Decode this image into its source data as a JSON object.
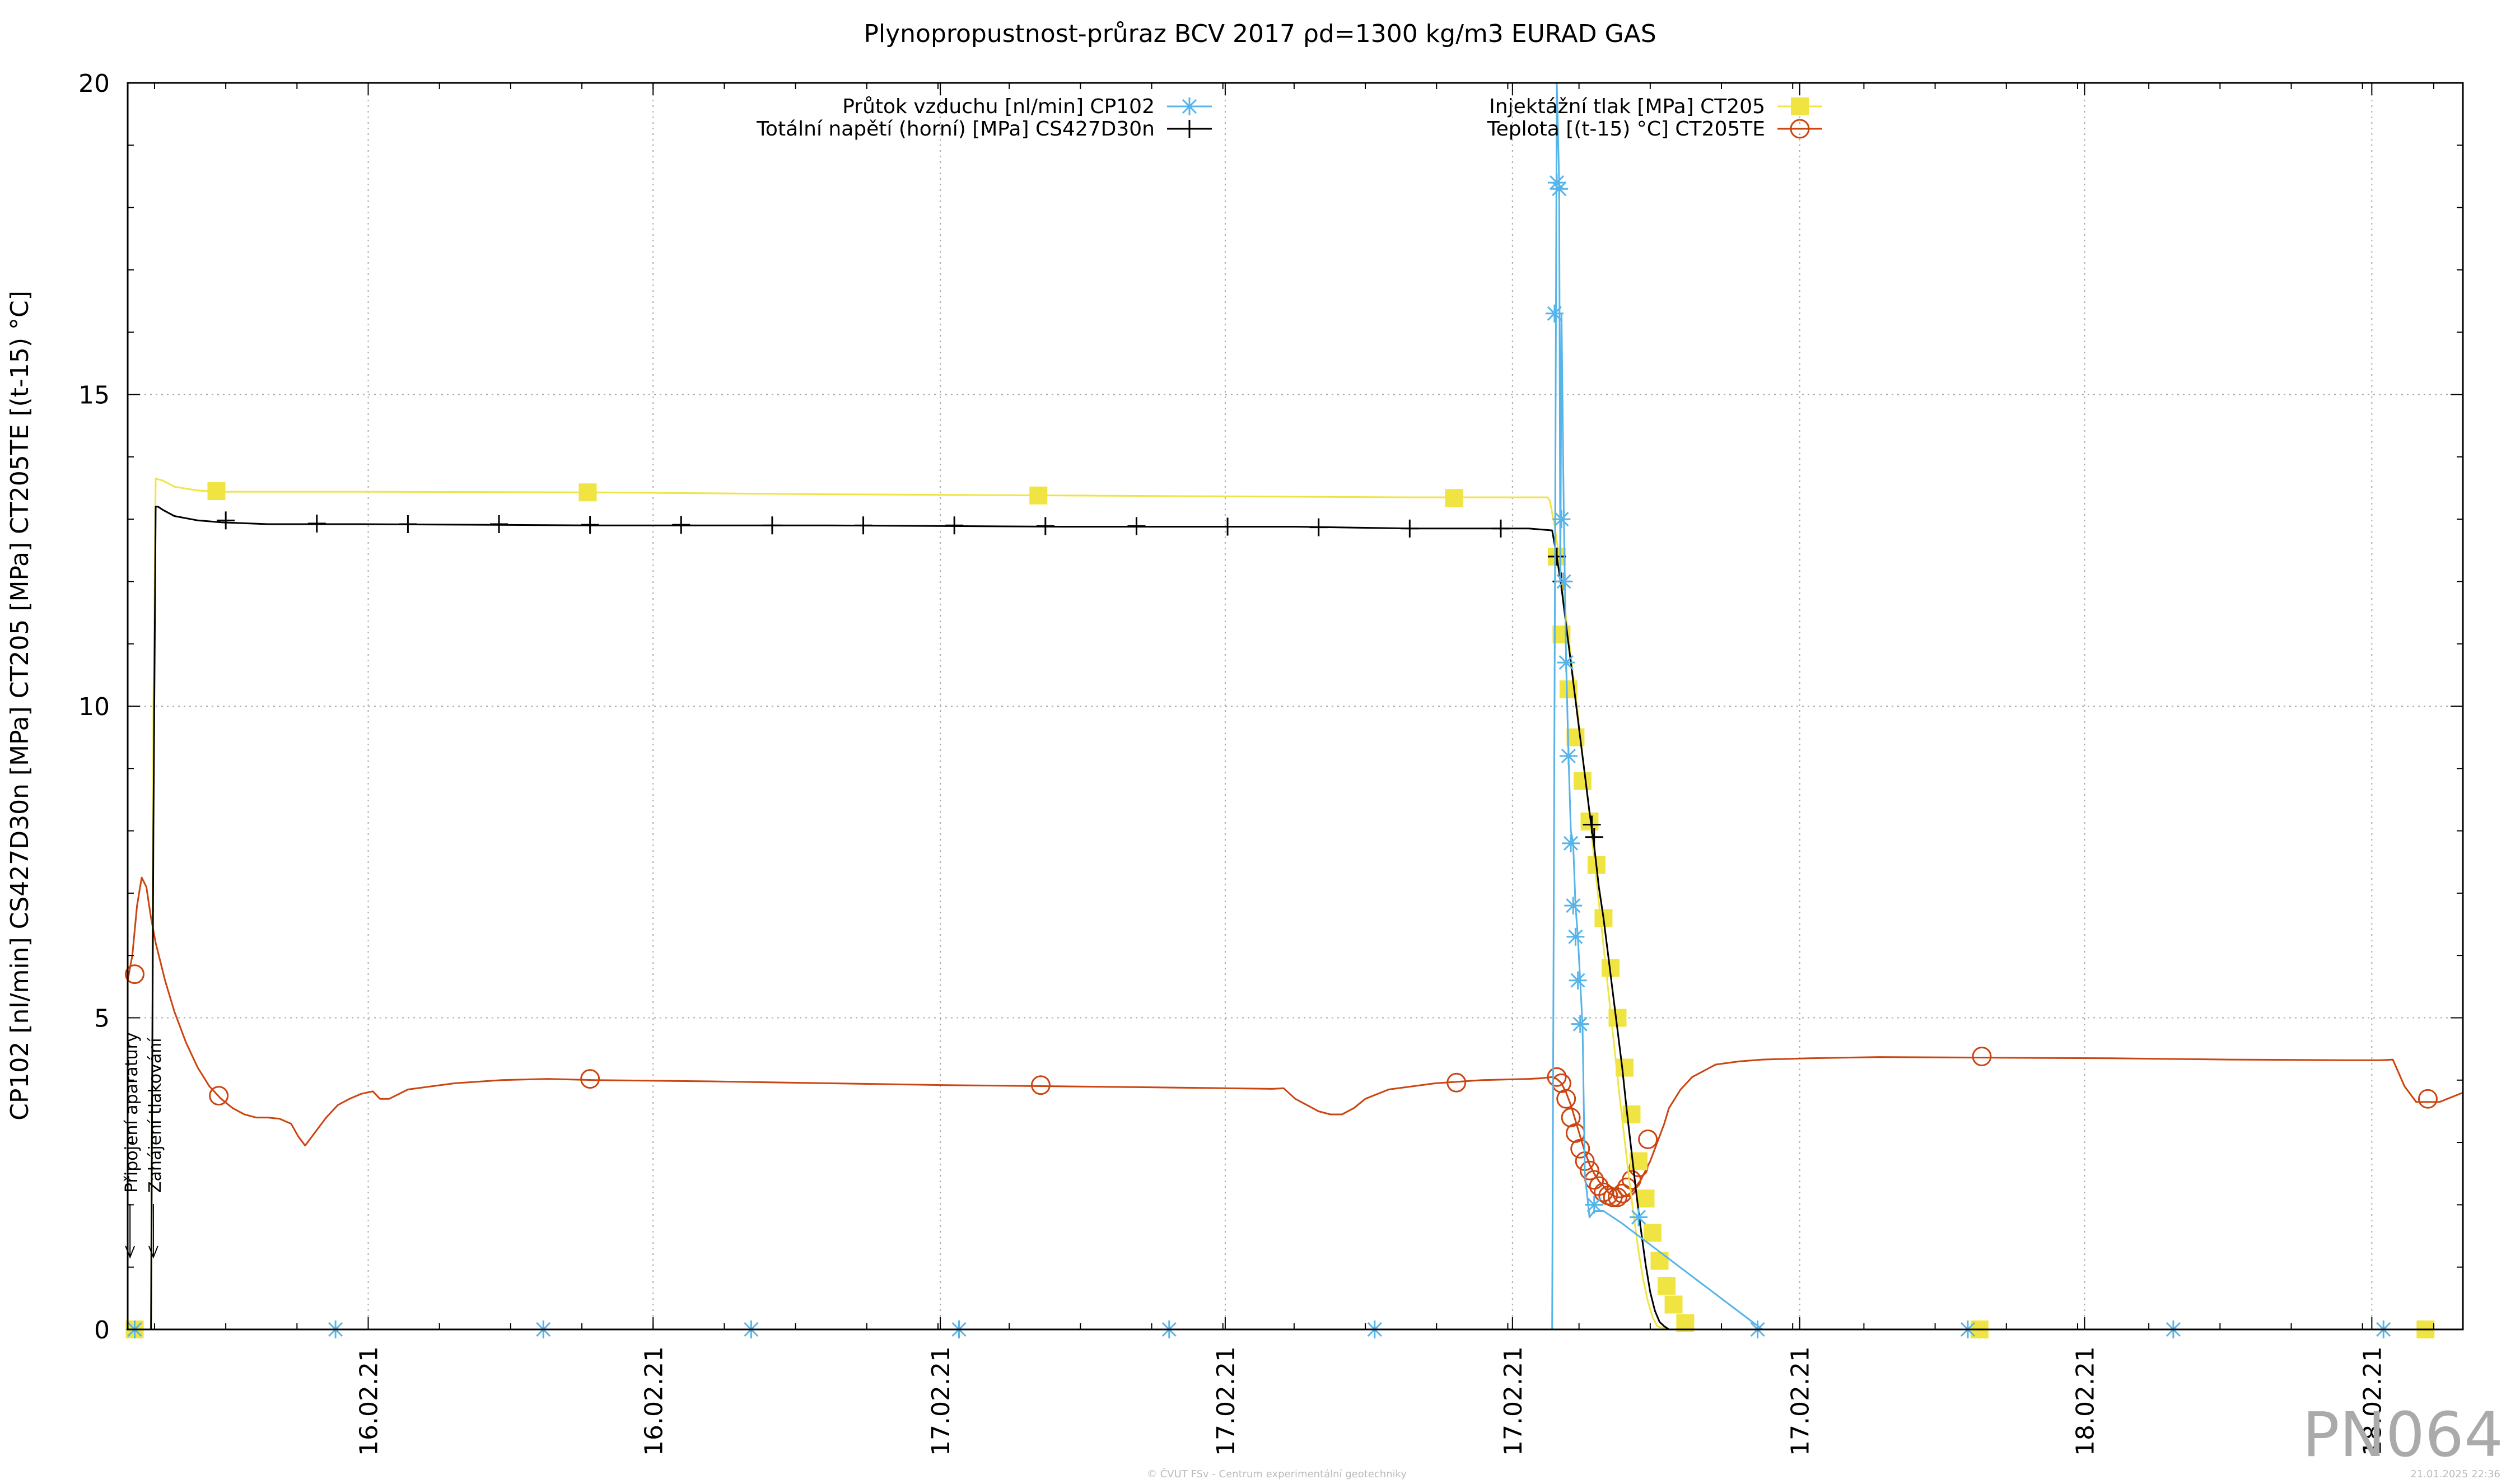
{
  "chart_data": {
    "type": "line",
    "title": "Plynopropustnost-průraz BCV 2017 ρd=1300 kg/m3 EURAD GAS",
    "ylabel": "CP102 [nl/min] CS427D30n [MPa] CT205 [MPa] CT205TE [(t-15) °C]",
    "xlabel": "",
    "ylim": [
      0,
      20
    ],
    "xlim": [
      0,
      1000
    ],
    "grid": true,
    "legend_position": "top",
    "y_ticks": [
      "0",
      "5",
      "10",
      "15",
      "20"
    ],
    "x_ticks": [
      {
        "x": 103,
        "label": "16.02.21"
      },
      {
        "x": 225,
        "label": "16.02.21"
      },
      {
        "x": 348,
        "label": "17.02.21"
      },
      {
        "x": 470,
        "label": "17.02.21"
      },
      {
        "x": 593,
        "label": "17.02.21"
      },
      {
        "x": 716,
        "label": "17.02.21"
      },
      {
        "x": 838,
        "label": "18.02.21"
      },
      {
        "x": 961,
        "label": "18.02.21"
      }
    ],
    "annotations": [
      {
        "text": "Připojení aparatury",
        "x": 1
      },
      {
        "text": "Zahájení tlakování",
        "x": 11
      }
    ],
    "series": [
      {
        "name": "Průtok vzduchu [nl/min] CP102",
        "color": "#56b4e9",
        "marker": "asterisk",
        "x": [
          0,
          610,
          611,
          612,
          613,
          613.5,
          614,
          615,
          616,
          617,
          618,
          619,
          620,
          621,
          622,
          623,
          624,
          626,
          628,
          632,
          640,
          700,
          800,
          1000
        ],
        "y": [
          0,
          0,
          10,
          20,
          18.4,
          12,
          16.3,
          13,
          10.7,
          9.2,
          8,
          7.8,
          6.8,
          6.3,
          5.6,
          4.9,
          2.5,
          1.8,
          1.9,
          1.9,
          1.7,
          0,
          0,
          0
        ],
        "marker_points": [
          [
            3,
            0
          ],
          [
            89,
            0
          ],
          [
            178,
            0
          ],
          [
            267,
            0
          ],
          [
            356,
            0
          ],
          [
            446,
            0
          ],
          [
            534,
            0
          ],
          [
            611,
            16.3
          ],
          [
            612,
            18.4
          ],
          [
            613,
            18.3
          ],
          [
            614,
            13
          ],
          [
            615,
            12
          ],
          [
            616,
            10.7
          ],
          [
            617,
            9.2
          ],
          [
            618,
            7.8
          ],
          [
            619,
            6.8
          ],
          [
            620,
            6.3
          ],
          [
            621,
            5.6
          ],
          [
            622,
            4.9
          ],
          [
            628,
            2
          ],
          [
            647,
            1.8
          ],
          [
            698,
            0
          ],
          [
            788,
            0
          ],
          [
            876,
            0
          ],
          [
            966,
            0
          ]
        ]
      },
      {
        "name": "Totální napětí (horní) [MPa] CS427D30n",
        "color": "#000000",
        "marker": "plus",
        "x": [
          0,
          10,
          11,
          12,
          13,
          15,
          20,
          30,
          40,
          60,
          100,
          200,
          300,
          400,
          500,
          550,
          600,
          610,
          612,
          614,
          616,
          618,
          620,
          622,
          624,
          626,
          628,
          630,
          632,
          634,
          636,
          638,
          640,
          642,
          644,
          646,
          648,
          650,
          652,
          654,
          656,
          658,
          660,
          700,
          800,
          1000
        ],
        "y": [
          0,
          0,
          8,
          13.2,
          13.2,
          13.15,
          13.05,
          12.98,
          12.95,
          12.92,
          12.92,
          12.9,
          12.9,
          12.88,
          12.88,
          12.85,
          12.85,
          12.82,
          12.4,
          11.9,
          11.3,
          10.7,
          10.1,
          9.5,
          8.9,
          8.3,
          7.75,
          7.1,
          6.6,
          6,
          5.4,
          4.8,
          4.2,
          3.5,
          2.85,
          2.2,
          1.6,
          1.05,
          0.6,
          0.3,
          0.12,
          0.05,
          0,
          0,
          0,
          0
        ],
        "marker_points": [
          [
            42,
            12.98
          ],
          [
            81,
            12.93
          ],
          [
            120,
            12.92
          ],
          [
            159,
            12.92
          ],
          [
            198,
            12.91
          ],
          [
            237,
            12.91
          ],
          [
            276,
            12.9
          ],
          [
            315,
            12.9
          ],
          [
            354,
            12.9
          ],
          [
            393,
            12.89
          ],
          [
            432,
            12.89
          ],
          [
            471,
            12.88
          ],
          [
            510,
            12.87
          ],
          [
            549,
            12.85
          ],
          [
            588,
            12.85
          ],
          [
            612,
            12.4
          ],
          [
            614,
            12
          ],
          [
            627,
            8.1
          ],
          [
            628,
            7.9
          ]
        ]
      },
      {
        "name": "Injektážní tlak [MPa] CT205",
        "color": "#f0e442",
        "marker": "square",
        "x": [
          0,
          10,
          11,
          12,
          15,
          20,
          30,
          40,
          100,
          200,
          300,
          400,
          500,
          550,
          608,
          609,
          611,
          613,
          615,
          617,
          619,
          621,
          623,
          625,
          627,
          629,
          631,
          633,
          635,
          637,
          639,
          641,
          643,
          645,
          647,
          649,
          651,
          653,
          655,
          660,
          670,
          680,
          700,
          800,
          1000
        ],
        "y": [
          0,
          0,
          10,
          13.65,
          13.62,
          13.52,
          13.46,
          13.44,
          13.44,
          13.43,
          13.4,
          13.38,
          13.36,
          13.35,
          13.35,
          13.3,
          12.9,
          12.4,
          11.7,
          11.1,
          10.5,
          9.9,
          9.2,
          8.6,
          7.9,
          7.2,
          6.5,
          5.8,
          5.1,
          4.4,
          3.7,
          3.05,
          2.4,
          1.8,
          1.25,
          0.8,
          0.45,
          0.2,
          0.05,
          0,
          0,
          0,
          0,
          0,
          0
        ],
        "marker_points": [
          [
            3,
            0
          ],
          [
            38,
            13.45
          ],
          [
            197,
            13.43
          ],
          [
            390,
            13.38
          ],
          [
            568,
            13.34
          ],
          [
            612,
            12.4
          ],
          [
            614,
            11.15
          ],
          [
            617,
            10.27
          ],
          [
            620,
            9.5
          ],
          [
            623,
            8.8
          ],
          [
            626,
            8.15
          ],
          [
            629,
            7.45
          ],
          [
            632,
            6.6
          ],
          [
            635,
            5.8
          ],
          [
            638,
            5
          ],
          [
            641,
            4.2
          ],
          [
            644,
            3.45
          ],
          [
            647,
            2.7
          ],
          [
            650,
            2.1
          ],
          [
            653,
            1.55
          ],
          [
            656,
            1.1
          ],
          [
            659,
            0.7
          ],
          [
            662,
            0.4
          ],
          [
            667,
            0.1
          ],
          [
            793,
            0
          ],
          [
            984,
            0
          ]
        ]
      },
      {
        "name": "Teplota [(t-15) °C] CT205TE",
        "color": "#cc4410",
        "marker": "circle",
        "x": [
          0,
          2,
          4,
          6,
          8,
          10,
          11,
          12,
          14,
          16,
          20,
          25,
          30,
          35,
          40,
          45,
          50,
          55,
          60,
          65,
          70,
          73,
          76,
          80,
          85,
          90,
          95,
          100,
          105,
          108,
          112,
          120,
          140,
          160,
          180,
          200,
          250,
          300,
          350,
          400,
          450,
          490,
          495,
          500,
          505,
          510,
          515,
          520,
          525,
          530,
          540,
          560,
          580,
          600,
          605,
          610,
          612,
          614,
          616,
          618,
          620,
          622,
          624,
          626,
          628,
          630,
          632,
          634,
          636,
          638,
          640,
          642,
          644,
          646,
          648,
          650,
          652,
          654,
          656,
          658,
          660,
          665,
          670,
          680,
          690,
          700,
          720,
          750,
          800,
          850,
          900,
          950,
          965,
          970,
          975,
          980,
          990,
          1000
        ],
        "y": [
          5.6,
          6.0,
          6.8,
          7.25,
          7.1,
          6.6,
          6.4,
          6.2,
          5.9,
          5.6,
          5.1,
          4.6,
          4.2,
          3.9,
          3.7,
          3.55,
          3.45,
          3.4,
          3.4,
          3.38,
          3.3,
          3.1,
          2.95,
          3.15,
          3.4,
          3.6,
          3.7,
          3.78,
          3.82,
          3.7,
          3.7,
          3.85,
          3.95,
          4.0,
          4.02,
          4.0,
          3.98,
          3.95,
          3.92,
          3.9,
          3.88,
          3.86,
          3.87,
          3.7,
          3.6,
          3.5,
          3.45,
          3.45,
          3.55,
          3.7,
          3.85,
          3.95,
          4.0,
          4.02,
          4.03,
          4.05,
          4.02,
          3.95,
          3.8,
          3.6,
          3.35,
          3.1,
          2.85,
          2.65,
          2.5,
          2.38,
          2.3,
          2.2,
          2.15,
          2.12,
          2.12,
          2.15,
          2.2,
          2.3,
          2.4,
          2.55,
          2.7,
          2.9,
          3.1,
          3.3,
          3.55,
          3.85,
          4.05,
          4.25,
          4.3,
          4.33,
          4.35,
          4.37,
          4.36,
          4.35,
          4.33,
          4.32,
          4.32,
          4.33,
          3.9,
          3.65,
          3.65,
          3.8
        ],
        "marker_points": [
          [
            3,
            5.7
          ],
          [
            39,
            3.75
          ],
          [
            198,
            4.02
          ],
          [
            391,
            3.92
          ],
          [
            569,
            3.96
          ],
          [
            612,
            4.05
          ],
          [
            614,
            3.95
          ],
          [
            616,
            3.7
          ],
          [
            618,
            3.4
          ],
          [
            620,
            3.15
          ],
          [
            622,
            2.9
          ],
          [
            624,
            2.7
          ],
          [
            626,
            2.55
          ],
          [
            628,
            2.4
          ],
          [
            630,
            2.3
          ],
          [
            632,
            2.2
          ],
          [
            634,
            2.15
          ],
          [
            636,
            2.12
          ],
          [
            638,
            2.12
          ],
          [
            640,
            2.18
          ],
          [
            642,
            2.28
          ],
          [
            644,
            2.4
          ],
          [
            647,
            2.6
          ],
          [
            651,
            3.05
          ],
          [
            794,
            4.38
          ],
          [
            985,
            3.7
          ]
        ]
      }
    ]
  },
  "watermark": "PN064",
  "footer_left": "© ČVUT FSv - Centrum experimentální geotechniky",
  "footer_right": "21.01.2025 22:36"
}
